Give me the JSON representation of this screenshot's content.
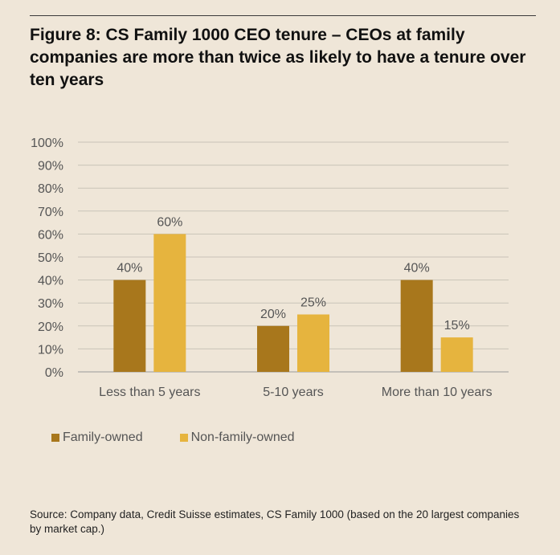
{
  "title": "Figure 8: CS Family 1000 CEO tenure – CEOs at family companies are more than twice as likely to have a tenure over ten years",
  "source": "Source: Company data, Credit Suisse estimates, CS Family 1000 (based on the 20 largest companies by market cap.)",
  "chart_data": {
    "type": "bar",
    "categories": [
      "Less than 5 years",
      "5-10 years",
      "More than 10 years"
    ],
    "series": [
      {
        "name": "Family-owned",
        "values": [
          40,
          20,
          40
        ],
        "labels": [
          "40%",
          "20%",
          "40%"
        ],
        "color": "#a8771c"
      },
      {
        "name": "Non-family-owned",
        "values": [
          60,
          25,
          15
        ],
        "labels": [
          "60%",
          "25%",
          "15%"
        ],
        "color": "#e6b43e"
      }
    ],
    "ylim": [
      0,
      100
    ],
    "yticks": [
      0,
      10,
      20,
      30,
      40,
      50,
      60,
      70,
      80,
      90,
      100
    ],
    "ytick_labels": [
      "0%",
      "10%",
      "20%",
      "30%",
      "40%",
      "50%",
      "60%",
      "70%",
      "80%",
      "90%",
      "100%"
    ],
    "grid": true,
    "legend_position": "bottom-left",
    "xlabel": "",
    "ylabel": ""
  }
}
